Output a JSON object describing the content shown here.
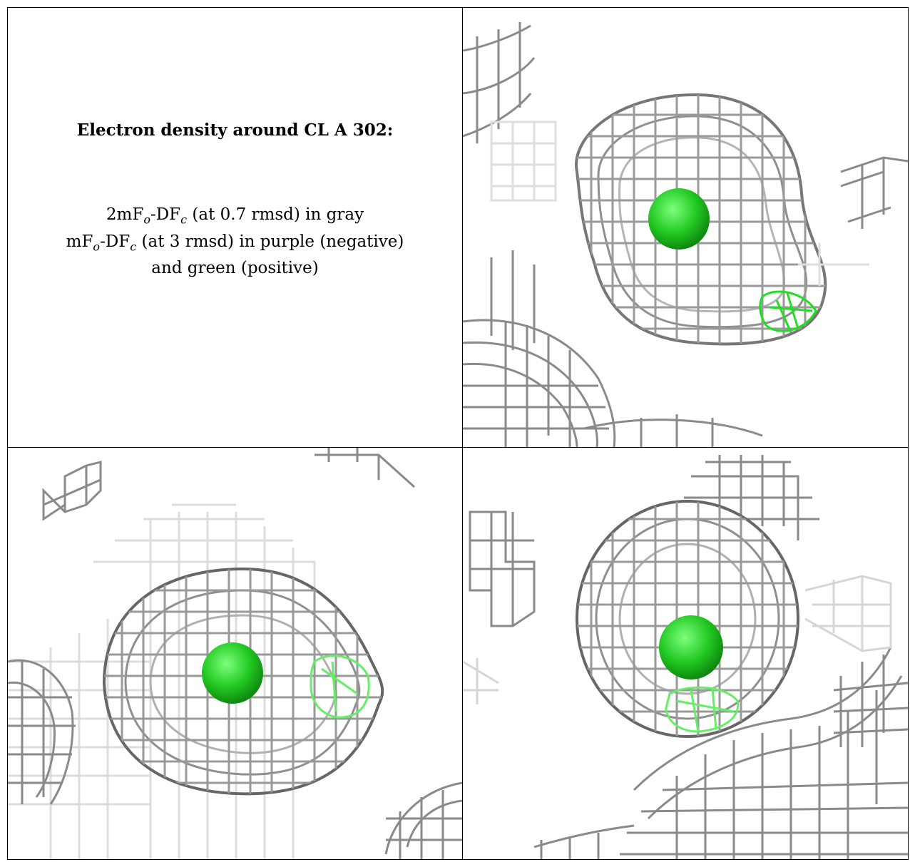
{
  "panel_text": {
    "title": "Electron density around CL A 302:",
    "line1": "2mF",
    "line1_sub1": "o",
    "line1_mid": "-DF",
    "line1_sub2": "c",
    "line1_rest": " (at 0.7 rmsd) in gray",
    "line2": "mF",
    "line2_sub1": "o",
    "line2_mid": "-DF",
    "line2_sub2": "c",
    "line2_rest": " (at 3 rmsd) in purple (negative)",
    "line3": "and green (positive)"
  },
  "colors": {
    "mesh_2fofc": "#9a9a9a",
    "mesh_2fofc_dark": "#555555",
    "mesh_2fofc_faint": "#dcdcdc",
    "mesh_fofc_positive": "#22dd22",
    "atom_chloride": "#22c822",
    "border": "#000000"
  },
  "views": [
    {
      "name": "view-top-right",
      "atom": "CL"
    },
    {
      "name": "view-bottom-left",
      "atom": "CL"
    },
    {
      "name": "view-bottom-right",
      "atom": "CL"
    }
  ]
}
